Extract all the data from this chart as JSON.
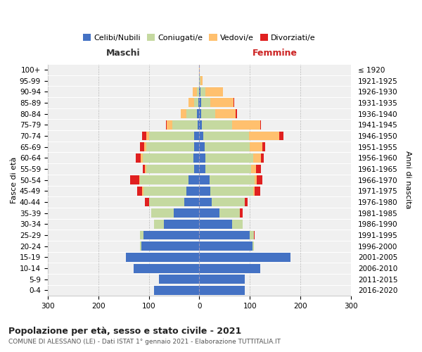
{
  "age_groups": [
    "0-4",
    "5-9",
    "10-14",
    "15-19",
    "20-24",
    "25-29",
    "30-34",
    "35-39",
    "40-44",
    "45-49",
    "50-54",
    "55-59",
    "60-64",
    "65-69",
    "70-74",
    "75-79",
    "80-84",
    "85-89",
    "90-94",
    "95-99",
    "100+"
  ],
  "birth_years": [
    "2016-2020",
    "2011-2015",
    "2006-2010",
    "2001-2005",
    "1996-2000",
    "1991-1995",
    "1986-1990",
    "1981-1985",
    "1976-1980",
    "1971-1975",
    "1966-1970",
    "1961-1965",
    "1956-1960",
    "1951-1955",
    "1946-1950",
    "1941-1945",
    "1936-1940",
    "1931-1935",
    "1926-1930",
    "1921-1925",
    "≤ 1920"
  ],
  "maschi": {
    "celibi": [
      90,
      80,
      130,
      145,
      115,
      110,
      70,
      50,
      30,
      26,
      22,
      10,
      12,
      10,
      10,
      4,
      5,
      2,
      0,
      0,
      0
    ],
    "coniugati": [
      0,
      0,
      0,
      0,
      3,
      8,
      20,
      45,
      70,
      85,
      95,
      95,
      100,
      95,
      90,
      50,
      20,
      8,
      5,
      0,
      0
    ],
    "vedovi": [
      0,
      0,
      0,
      0,
      0,
      0,
      0,
      0,
      0,
      2,
      2,
      2,
      4,
      4,
      5,
      10,
      12,
      12,
      8,
      1,
      0
    ],
    "divorziati": [
      0,
      0,
      0,
      0,
      0,
      0,
      0,
      0,
      8,
      10,
      18,
      5,
      10,
      8,
      8,
      2,
      0,
      0,
      0,
      0,
      0
    ]
  },
  "femmine": {
    "nubili": [
      90,
      90,
      120,
      180,
      105,
      100,
      65,
      40,
      25,
      22,
      20,
      12,
      12,
      10,
      8,
      5,
      4,
      4,
      2,
      0,
      0
    ],
    "coniugate": [
      0,
      0,
      0,
      0,
      3,
      8,
      20,
      40,
      65,
      85,
      90,
      90,
      95,
      90,
      90,
      60,
      28,
      18,
      10,
      2,
      0
    ],
    "vedove": [
      0,
      0,
      0,
      0,
      0,
      0,
      0,
      0,
      0,
      2,
      3,
      10,
      15,
      25,
      60,
      55,
      40,
      45,
      35,
      5,
      1
    ],
    "divorziate": [
      0,
      0,
      0,
      0,
      0,
      2,
      0,
      5,
      5,
      12,
      12,
      10,
      5,
      5,
      8,
      2,
      2,
      2,
      0,
      0,
      0
    ]
  },
  "colors": {
    "celibi_nubili": "#4472c4",
    "coniugati": "#c5d9a0",
    "vedovi": "#ffc06e",
    "divorziati": "#e02020"
  },
  "title": "Popolazione per età, sesso e stato civile - 2021",
  "subtitle": "COMUNE DI ALESSANO (LE) - Dati ISTAT 1° gennaio 2021 - Elaborazione TUTTITALIA.IT",
  "header_maschi": "Maschi",
  "header_femmine": "Femmine",
  "ylabel_left": "Fasce di età",
  "ylabel_right": "Anni di nascita",
  "xlim": 300,
  "background_color": "#ffffff",
  "plot_bg": "#f0f0f0",
  "legend_labels": [
    "Celibi/Nubili",
    "Coniugati/e",
    "Vedovi/e",
    "Divorziati/e"
  ]
}
